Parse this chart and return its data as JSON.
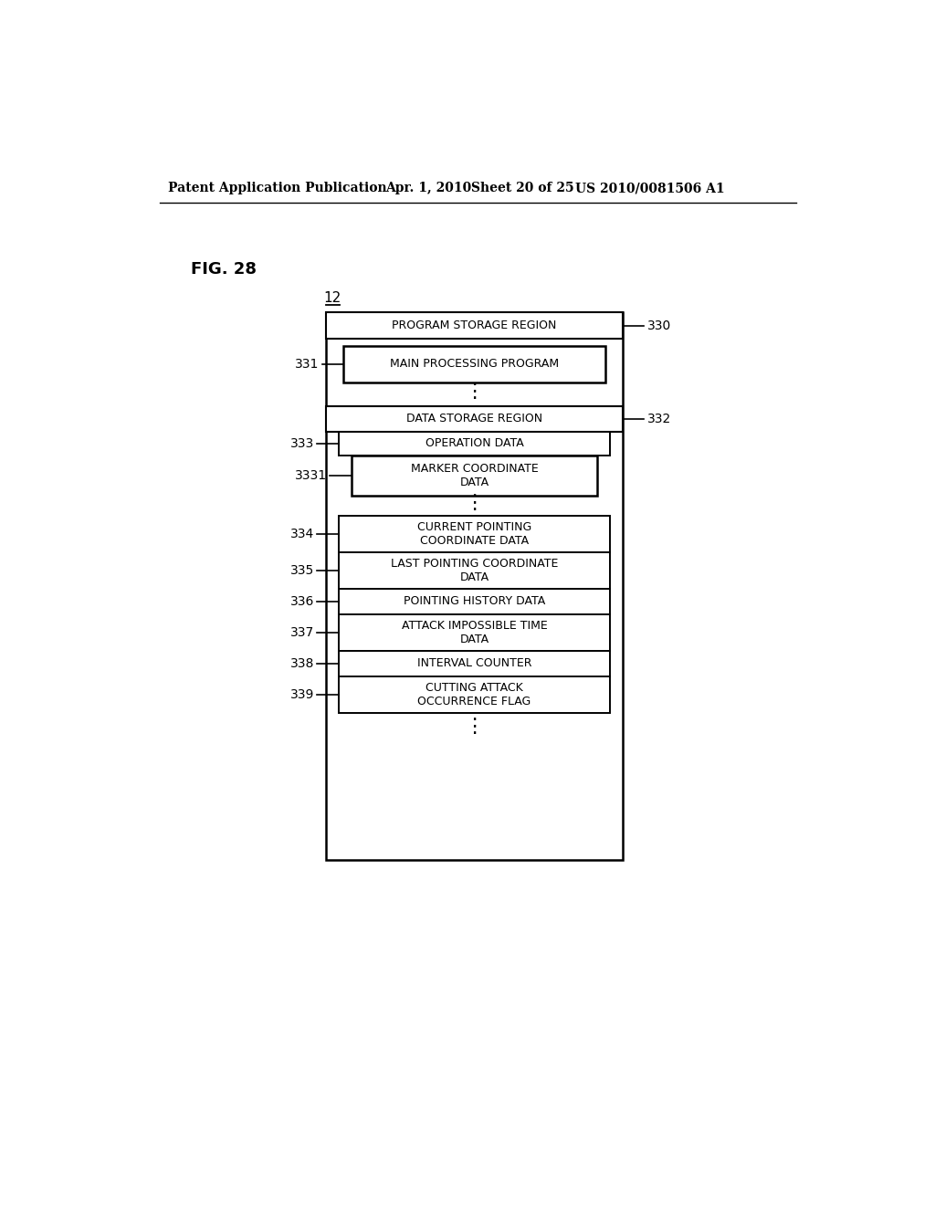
{
  "bg_color": "#ffffff",
  "header_text": "Patent Application Publication",
  "header_date": "Apr. 1, 2010",
  "header_sheet": "Sheet 20 of 25",
  "header_patent": "US 2010/0081506 A1",
  "fig_label": "FIG. 28",
  "node12_label": "12",
  "label_330": "330",
  "label_332": "332",
  "label_331": "331",
  "label_333": "333",
  "label_3331": "3331",
  "label_334": "334",
  "label_335": "335",
  "label_336": "336",
  "label_337": "337",
  "label_338": "338",
  "label_339": "339",
  "program_region_label": "PROGRAM STORAGE REGION",
  "main_prog_label": "MAIN PROCESSING PROGRAM",
  "data_region_label": "DATA STORAGE REGION",
  "operation_data_label": "OPERATION DATA",
  "marker_coord_label": "MARKER COORDINATE\nDATA",
  "current_pointing_label": "CURRENT POINTING\nCOORDINATE DATA",
  "last_pointing_label": "LAST POINTING COORDINATE\nDATA",
  "pointing_history_label": "POINTING HISTORY DATA",
  "attack_impossible_label": "ATTACK IMPOSSIBLE TIME\nDATA",
  "interval_counter_label": "INTERVAL COUNTER",
  "cutting_attack_label": "CUTTING ATTACK\nOCCURRENCE FLAG"
}
